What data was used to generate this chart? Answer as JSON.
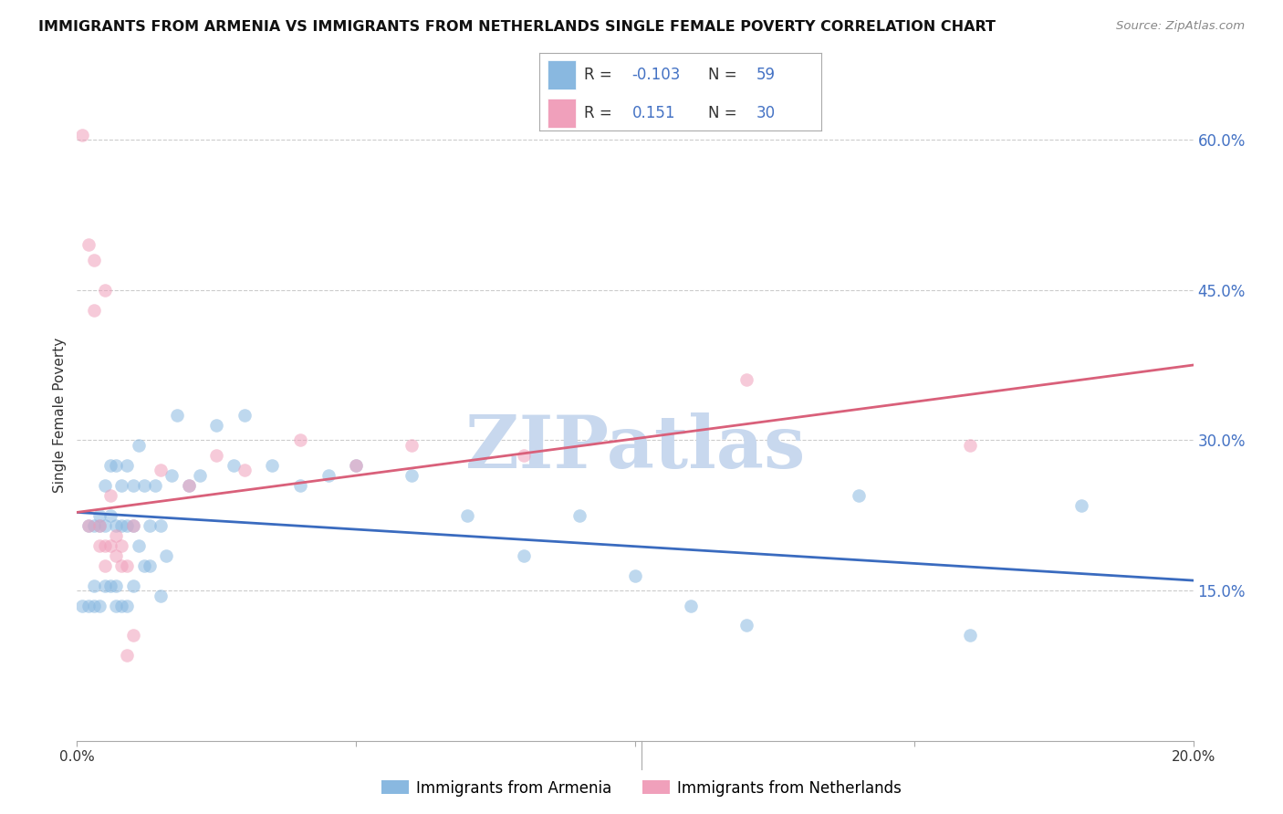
{
  "title": "IMMIGRANTS FROM ARMENIA VS IMMIGRANTS FROM NETHERLANDS SINGLE FEMALE POVERTY CORRELATION CHART",
  "source": "Source: ZipAtlas.com",
  "ylabel": "Single Female Poverty",
  "right_yticks": [
    "60.0%",
    "45.0%",
    "30.0%",
    "15.0%"
  ],
  "right_ytick_vals": [
    0.6,
    0.45,
    0.3,
    0.15
  ],
  "legend_blue_label": "Immigrants from Armenia",
  "legend_pink_label": "Immigrants from Netherlands",
  "blue_color": "#89b8e0",
  "pink_color": "#f0a0bb",
  "blue_line_color": "#3a6bbf",
  "pink_line_color": "#d9607a",
  "text_color": "#333333",
  "right_axis_color": "#4472c4",
  "background_color": "#ffffff",
  "watermark": "ZIPatlas",
  "watermark_color": "#c8d8ee",
  "blue_x": [
    0.001,
    0.002,
    0.002,
    0.003,
    0.003,
    0.003,
    0.004,
    0.004,
    0.004,
    0.005,
    0.005,
    0.005,
    0.006,
    0.006,
    0.006,
    0.007,
    0.007,
    0.007,
    0.007,
    0.008,
    0.008,
    0.008,
    0.009,
    0.009,
    0.009,
    0.01,
    0.01,
    0.01,
    0.011,
    0.011,
    0.012,
    0.012,
    0.013,
    0.013,
    0.014,
    0.015,
    0.015,
    0.016,
    0.017,
    0.018,
    0.02,
    0.022,
    0.025,
    0.028,
    0.03,
    0.035,
    0.04,
    0.045,
    0.05,
    0.06,
    0.07,
    0.08,
    0.09,
    0.1,
    0.11,
    0.12,
    0.14,
    0.16,
    0.18
  ],
  "blue_y": [
    0.135,
    0.135,
    0.215,
    0.135,
    0.155,
    0.215,
    0.135,
    0.215,
    0.225,
    0.155,
    0.215,
    0.255,
    0.155,
    0.225,
    0.275,
    0.135,
    0.155,
    0.215,
    0.275,
    0.135,
    0.215,
    0.255,
    0.135,
    0.215,
    0.275,
    0.155,
    0.215,
    0.255,
    0.195,
    0.295,
    0.175,
    0.255,
    0.175,
    0.215,
    0.255,
    0.145,
    0.215,
    0.185,
    0.265,
    0.325,
    0.255,
    0.265,
    0.315,
    0.275,
    0.325,
    0.275,
    0.255,
    0.265,
    0.275,
    0.265,
    0.225,
    0.185,
    0.225,
    0.165,
    0.135,
    0.115,
    0.245,
    0.105,
    0.235
  ],
  "pink_x": [
    0.001,
    0.002,
    0.002,
    0.003,
    0.003,
    0.004,
    0.004,
    0.005,
    0.005,
    0.006,
    0.006,
    0.007,
    0.007,
    0.008,
    0.008,
    0.009,
    0.009,
    0.01,
    0.01,
    0.015,
    0.02,
    0.025,
    0.03,
    0.04,
    0.05,
    0.06,
    0.08,
    0.12,
    0.16,
    0.005
  ],
  "pink_y": [
    0.605,
    0.495,
    0.215,
    0.48,
    0.43,
    0.215,
    0.195,
    0.195,
    0.175,
    0.195,
    0.245,
    0.205,
    0.185,
    0.195,
    0.175,
    0.085,
    0.175,
    0.105,
    0.215,
    0.27,
    0.255,
    0.285,
    0.27,
    0.3,
    0.275,
    0.295,
    0.285,
    0.36,
    0.295,
    0.45
  ],
  "xlim": [
    0.0,
    0.2
  ],
  "ylim": [
    0.0,
    0.65
  ],
  "marker_size": 110,
  "marker_alpha": 0.55,
  "blue_trend": [
    0.228,
    0.16
  ],
  "pink_trend": [
    0.228,
    0.375
  ]
}
